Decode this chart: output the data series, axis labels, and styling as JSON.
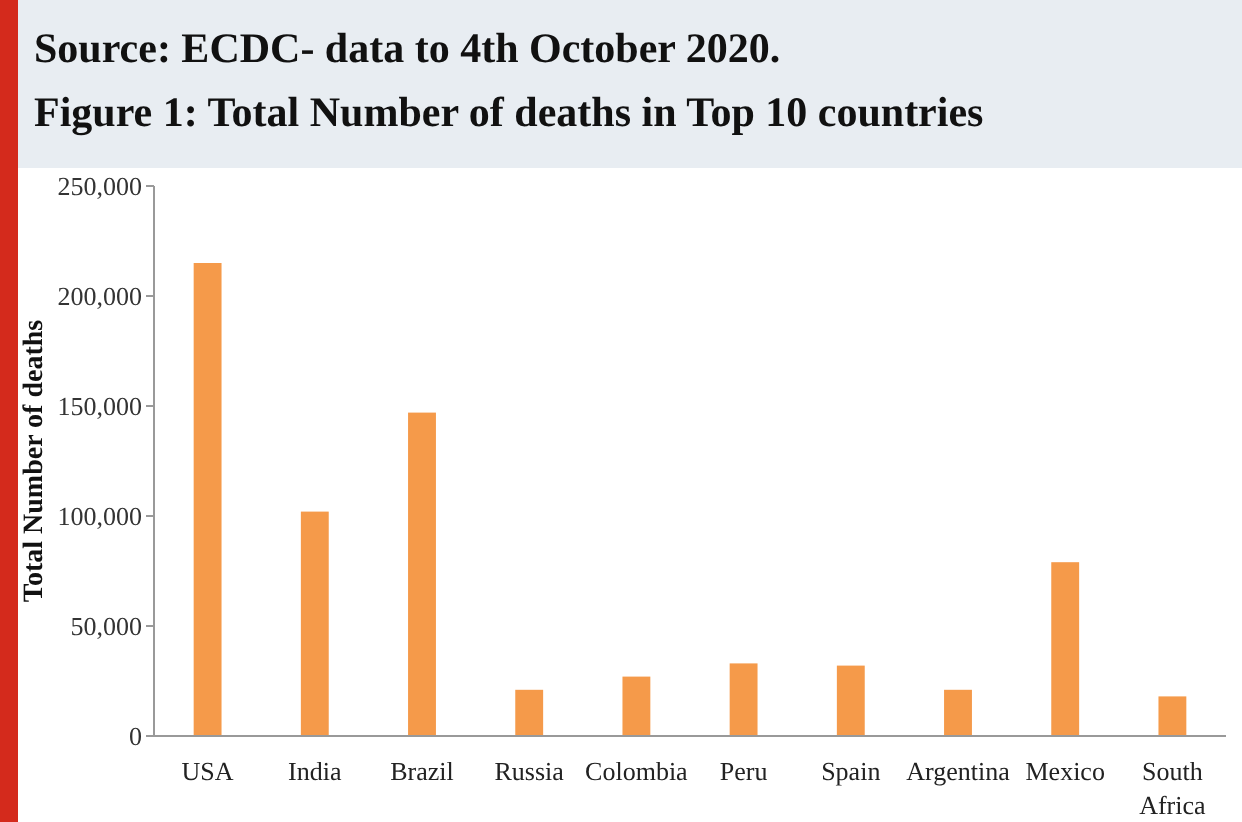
{
  "chart_data": {
    "type": "bar",
    "title": "Figure 1: Total Number of deaths in Top 10 countries",
    "annotations": [
      "Source: ECDC- data to 4th October 2020."
    ],
    "ylabel": "Total  Number  of deaths",
    "categories": [
      "USA",
      "India",
      "Brazil",
      "Russia",
      "Colombia",
      "Peru",
      "Spain",
      "Argentina",
      "Mexico",
      "South Africa"
    ],
    "values": [
      215000,
      102000,
      147000,
      21000,
      27000,
      33000,
      32000,
      21000,
      79000,
      18000
    ],
    "color": "#f59a4a",
    "ylim": [
      0,
      250000
    ],
    "yticks": [
      {
        "value": 0,
        "label": "0"
      },
      {
        "value": 50000,
        "label": "50,000"
      },
      {
        "value": 100000,
        "label": "100,000"
      },
      {
        "value": 150000,
        "label": "150,000"
      },
      {
        "value": 200000,
        "label": "200,000"
      },
      {
        "value": 250000,
        "label": "250,000"
      }
    ],
    "grid": false
  }
}
